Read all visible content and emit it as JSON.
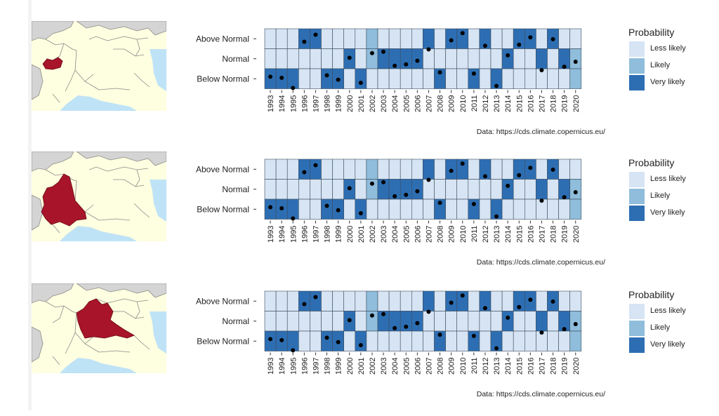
{
  "chart_data": [
    {
      "type": "heatmap",
      "region": "Valle d'Aosta",
      "categories": [
        "1993",
        "1994",
        "1995",
        "1996",
        "1997",
        "1998",
        "1999",
        "2000",
        "2001",
        "2002",
        "2003",
        "2004",
        "2005",
        "2006",
        "2007",
        "2008",
        "2009",
        "2010",
        "2011",
        "2012",
        "2013",
        "2014",
        "2015",
        "2016",
        "2017",
        "2018",
        "2019",
        "2020"
      ],
      "y_categories": [
        "Above Normal",
        "Normal",
        "Below Normal"
      ],
      "probability": {
        "Above Normal": [
          "Less likely",
          "Less likely",
          "Less likely",
          "Very likely",
          "Very likely",
          "Less likely",
          "Less likely",
          "Less likely",
          "Less likely",
          "Likely",
          "Less likely",
          "Less likely",
          "Less likely",
          "Less likely",
          "Very likely",
          "Less likely",
          "Very likely",
          "Very likely",
          "Less likely",
          "Very likely",
          "Less likely",
          "Less likely",
          "Very likely",
          "Very likely",
          "Less likely",
          "Very likely",
          "Less likely",
          "Less likely"
        ],
        "Normal": [
          "Less likely",
          "Less likely",
          "Less likely",
          "Less likely",
          "Less likely",
          "Less likely",
          "Less likely",
          "Very likely",
          "Less likely",
          "Likely",
          "Very likely",
          "Very likely",
          "Very likely",
          "Very likely",
          "Less likely",
          "Less likely",
          "Less likely",
          "Less likely",
          "Less likely",
          "Less likely",
          "Less likely",
          "Very likely",
          "Less likely",
          "Less likely",
          "Very likely",
          "Less likely",
          "Very likely",
          "Likely"
        ],
        "Below Normal": [
          "Very likely",
          "Very likely",
          "Very likely",
          "Less likely",
          "Less likely",
          "Very likely",
          "Very likely",
          "Less likely",
          "Very likely",
          "Less likely",
          "Less likely",
          "Less likely",
          "Less likely",
          "Less likely",
          "Less likely",
          "Very likely",
          "Less likely",
          "Less likely",
          "Very likely",
          "Less likely",
          "Very likely",
          "Less likely",
          "Less likely",
          "Less likely",
          "Less likely",
          "Less likely",
          "Less likely",
          "Likely"
        ]
      },
      "observed_dots": [
        {
          "year": "1993",
          "position": 0.6
        },
        {
          "year": "1994",
          "position": 0.55
        },
        {
          "year": "1995",
          "position": 0.04
        },
        {
          "year": "1996",
          "position": 2.35
        },
        {
          "year": "1997",
          "position": 2.7
        },
        {
          "year": "1998",
          "position": 0.67
        },
        {
          "year": "1999",
          "position": 0.45
        },
        {
          "year": "2000",
          "position": 1.55
        },
        {
          "year": "2001",
          "position": 0.3
        },
        {
          "year": "2002",
          "position": 1.78
        },
        {
          "year": "2003",
          "position": 1.85
        },
        {
          "year": "2004",
          "position": 1.15
        },
        {
          "year": "2005",
          "position": 1.22
        },
        {
          "year": "2006",
          "position": 1.4
        },
        {
          "year": "2007",
          "position": 1.97
        },
        {
          "year": "2008",
          "position": 0.82
        },
        {
          "year": "2009",
          "position": 2.42
        },
        {
          "year": "2010",
          "position": 2.78
        },
        {
          "year": "2011",
          "position": 0.76
        },
        {
          "year": "2012",
          "position": 2.15
        },
        {
          "year": "2013",
          "position": 0.14
        },
        {
          "year": "2014",
          "position": 1.67
        },
        {
          "year": "2015",
          "position": 2.2
        },
        {
          "year": "2016",
          "position": 2.57
        },
        {
          "year": "2017",
          "position": 0.93
        },
        {
          "year": "2018",
          "position": 2.48
        },
        {
          "year": "2019",
          "position": 1.1
        },
        {
          "year": "2020",
          "position": 1.35
        }
      ],
      "legend": {
        "title": "Probability",
        "entries": [
          "Less likely",
          "Likely",
          "Very likely"
        ]
      }
    },
    {
      "type": "heatmap",
      "region": "Piemonte",
      "categories": [
        "1993",
        "1994",
        "1995",
        "1996",
        "1997",
        "1998",
        "1999",
        "2000",
        "2001",
        "2002",
        "2003",
        "2004",
        "2005",
        "2006",
        "2007",
        "2008",
        "2009",
        "2010",
        "2011",
        "2012",
        "2013",
        "2014",
        "2015",
        "2016",
        "2017",
        "2018",
        "2019",
        "2020"
      ],
      "y_categories": [
        "Above Normal",
        "Normal",
        "Below Normal"
      ],
      "probability": {
        "Above Normal": [
          "Less likely",
          "Less likely",
          "Less likely",
          "Very likely",
          "Very likely",
          "Less likely",
          "Less likely",
          "Less likely",
          "Less likely",
          "Likely",
          "Less likely",
          "Less likely",
          "Less likely",
          "Less likely",
          "Very likely",
          "Less likely",
          "Very likely",
          "Very likely",
          "Less likely",
          "Very likely",
          "Less likely",
          "Less likely",
          "Very likely",
          "Very likely",
          "Less likely",
          "Very likely",
          "Less likely",
          "Less likely"
        ],
        "Normal": [
          "Less likely",
          "Less likely",
          "Less likely",
          "Less likely",
          "Less likely",
          "Less likely",
          "Less likely",
          "Very likely",
          "Less likely",
          "Likely",
          "Very likely",
          "Very likely",
          "Very likely",
          "Very likely",
          "Less likely",
          "Less likely",
          "Less likely",
          "Less likely",
          "Less likely",
          "Less likely",
          "Less likely",
          "Very likely",
          "Less likely",
          "Less likely",
          "Very likely",
          "Less likely",
          "Very likely",
          "Likely"
        ],
        "Below Normal": [
          "Very likely",
          "Very likely",
          "Very likely",
          "Less likely",
          "Less likely",
          "Very likely",
          "Very likely",
          "Less likely",
          "Very likely",
          "Less likely",
          "Less likely",
          "Less likely",
          "Less likely",
          "Less likely",
          "Less likely",
          "Very likely",
          "Less likely",
          "Less likely",
          "Very likely",
          "Less likely",
          "Very likely",
          "Less likely",
          "Less likely",
          "Less likely",
          "Less likely",
          "Less likely",
          "Less likely",
          "Likely"
        ]
      },
      "observed_dots": [
        {
          "year": "1993",
          "position": 0.6
        },
        {
          "year": "1994",
          "position": 0.55
        },
        {
          "year": "1995",
          "position": 0.04
        },
        {
          "year": "1996",
          "position": 2.35
        },
        {
          "year": "1997",
          "position": 2.7
        },
        {
          "year": "1998",
          "position": 0.67
        },
        {
          "year": "1999",
          "position": 0.45
        },
        {
          "year": "2000",
          "position": 1.55
        },
        {
          "year": "2001",
          "position": 0.3
        },
        {
          "year": "2002",
          "position": 1.78
        },
        {
          "year": "2003",
          "position": 1.85
        },
        {
          "year": "2004",
          "position": 1.15
        },
        {
          "year": "2005",
          "position": 1.22
        },
        {
          "year": "2006",
          "position": 1.4
        },
        {
          "year": "2007",
          "position": 1.97
        },
        {
          "year": "2008",
          "position": 0.82
        },
        {
          "year": "2009",
          "position": 2.42
        },
        {
          "year": "2010",
          "position": 2.78
        },
        {
          "year": "2011",
          "position": 0.76
        },
        {
          "year": "2012",
          "position": 2.15
        },
        {
          "year": "2013",
          "position": 0.14
        },
        {
          "year": "2014",
          "position": 1.67
        },
        {
          "year": "2015",
          "position": 2.2
        },
        {
          "year": "2016",
          "position": 2.57
        },
        {
          "year": "2017",
          "position": 0.93
        },
        {
          "year": "2018",
          "position": 2.48
        },
        {
          "year": "2019",
          "position": 1.1
        },
        {
          "year": "2020",
          "position": 1.35
        }
      ],
      "legend": {
        "title": "Probability",
        "entries": [
          "Less likely",
          "Likely",
          "Very likely"
        ]
      }
    },
    {
      "type": "heatmap",
      "region": "Lombardia",
      "categories": [
        "1993",
        "1994",
        "1995",
        "1996",
        "1997",
        "1998",
        "1999",
        "2000",
        "2001",
        "2002",
        "2003",
        "2004",
        "2005",
        "2006",
        "2007",
        "2008",
        "2009",
        "2010",
        "2011",
        "2012",
        "2013",
        "2014",
        "2015",
        "2016",
        "2017",
        "2018",
        "2019",
        "2020"
      ],
      "y_categories": [
        "Above Normal",
        "Normal",
        "Below Normal"
      ],
      "probability": {
        "Above Normal": [
          "Less likely",
          "Less likely",
          "Less likely",
          "Very likely",
          "Very likely",
          "Less likely",
          "Less likely",
          "Less likely",
          "Less likely",
          "Likely",
          "Less likely",
          "Less likely",
          "Less likely",
          "Less likely",
          "Very likely",
          "Less likely",
          "Very likely",
          "Very likely",
          "Less likely",
          "Very likely",
          "Less likely",
          "Less likely",
          "Very likely",
          "Very likely",
          "Less likely",
          "Very likely",
          "Less likely",
          "Less likely"
        ],
        "Normal": [
          "Less likely",
          "Less likely",
          "Less likely",
          "Less likely",
          "Less likely",
          "Less likely",
          "Less likely",
          "Very likely",
          "Less likely",
          "Likely",
          "Very likely",
          "Very likely",
          "Very likely",
          "Very likely",
          "Less likely",
          "Less likely",
          "Less likely",
          "Less likely",
          "Less likely",
          "Less likely",
          "Less likely",
          "Very likely",
          "Less likely",
          "Less likely",
          "Very likely",
          "Less likely",
          "Very likely",
          "Likely"
        ],
        "Below Normal": [
          "Very likely",
          "Very likely",
          "Very likely",
          "Less likely",
          "Less likely",
          "Very likely",
          "Very likely",
          "Less likely",
          "Very likely",
          "Less likely",
          "Less likely",
          "Less likely",
          "Less likely",
          "Less likely",
          "Less likely",
          "Very likely",
          "Less likely",
          "Less likely",
          "Very likely",
          "Less likely",
          "Very likely",
          "Less likely",
          "Less likely",
          "Less likely",
          "Less likely",
          "Less likely",
          "Less likely",
          "Likely"
        ]
      },
      "observed_dots": [
        {
          "year": "1993",
          "position": 0.6
        },
        {
          "year": "1994",
          "position": 0.55
        },
        {
          "year": "1995",
          "position": 0.04
        },
        {
          "year": "1996",
          "position": 2.35
        },
        {
          "year": "1997",
          "position": 2.7
        },
        {
          "year": "1998",
          "position": 0.67
        },
        {
          "year": "1999",
          "position": 0.45
        },
        {
          "year": "2000",
          "position": 1.55
        },
        {
          "year": "2001",
          "position": 0.3
        },
        {
          "year": "2002",
          "position": 1.78
        },
        {
          "year": "2003",
          "position": 1.85
        },
        {
          "year": "2004",
          "position": 1.15
        },
        {
          "year": "2005",
          "position": 1.22
        },
        {
          "year": "2006",
          "position": 1.4
        },
        {
          "year": "2007",
          "position": 1.97
        },
        {
          "year": "2008",
          "position": 0.82
        },
        {
          "year": "2009",
          "position": 2.42
        },
        {
          "year": "2010",
          "position": 2.78
        },
        {
          "year": "2011",
          "position": 0.76
        },
        {
          "year": "2012",
          "position": 2.15
        },
        {
          "year": "2013",
          "position": 0.14
        },
        {
          "year": "2014",
          "position": 1.67
        },
        {
          "year": "2015",
          "position": 2.2
        },
        {
          "year": "2016",
          "position": 2.57
        },
        {
          "year": "2017",
          "position": 0.93
        },
        {
          "year": "2018",
          "position": 2.48
        },
        {
          "year": "2019",
          "position": 1.1
        },
        {
          "year": "2020",
          "position": 1.35
        }
      ],
      "legend": {
        "title": "Probability",
        "entries": [
          "Less likely",
          "Likely",
          "Very likely"
        ]
      }
    }
  ],
  "legend_colors": {
    "Less likely": "#d6e4f4",
    "Likely": "#8fbddb",
    "Very likely": "#2d6eb3"
  },
  "map_colors": {
    "land": "#fefee0",
    "highlight": "#a8142a",
    "sea": "#bfe3f6",
    "outside": "#d4d4d4"
  },
  "caption": "Data:  https://cds.climate.copernicus.eu/"
}
